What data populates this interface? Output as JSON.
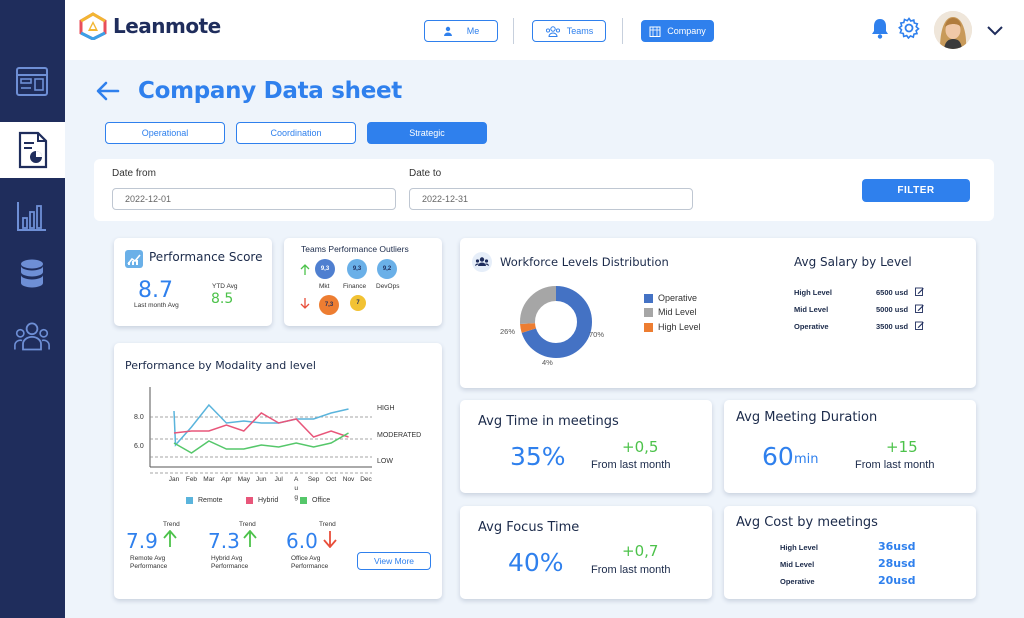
{
  "app": {
    "name": "Leanmote"
  },
  "nav": {
    "me": "Me",
    "teams": "Teams",
    "company": "Company"
  },
  "sidebar": {
    "items": [
      "dashboard-icon",
      "report-icon",
      "bar-chart-icon",
      "database-icon",
      "people-icon"
    ]
  },
  "page": {
    "title": "Company Data sheet"
  },
  "tabs": [
    "Operational",
    "Coordination",
    "Strategic"
  ],
  "filters": {
    "date_from_label": "Date from",
    "date_from_value": "2022-12-01",
    "date_to_label": "Date to",
    "date_to_value": "2022-12-31",
    "filter_label": "FILTER"
  },
  "performance_score": {
    "title": "Performance Score",
    "last_month_value": "8.7",
    "last_month_label": "Last month Avg",
    "ytd_label": "YTD Avg",
    "ytd_value": "8.5"
  },
  "outliers": {
    "title": "Teams Performance Outliers",
    "up": [
      {
        "score": "9,3",
        "team": "Mkt"
      },
      {
        "score": "9,3",
        "team": "Finance"
      },
      {
        "score": "9,2",
        "team": "DevOps"
      }
    ],
    "down": [
      {
        "score": "7,3"
      },
      {
        "score": "7"
      }
    ]
  },
  "workforce": {
    "title": "Workforce Levels Distribution",
    "legend": [
      "Operative",
      "Mid Level",
      "High Level"
    ],
    "colors": [
      "#4472c4",
      "#a6a6a6",
      "#ed7d31"
    ],
    "labels": {
      "operative": "70%",
      "mid": "26%",
      "high": "4%"
    }
  },
  "salary": {
    "title": "Avg Salary by Level",
    "rows": [
      {
        "level": "High Level",
        "value": "6500 usd"
      },
      {
        "level": "Mid Level",
        "value": "5000 usd"
      },
      {
        "level": "Operative",
        "value": "3500 usd"
      }
    ]
  },
  "modality": {
    "title": "Performance by Modality and level",
    "band_labels": [
      "HIGH",
      "MODERATED",
      "LOW"
    ],
    "y_ticks": [
      "8.0",
      "6.0"
    ],
    "months": [
      "Jan",
      "Feb",
      "Mar",
      "Apr",
      "May",
      "Jun",
      "Jul",
      "Aug",
      "Sep",
      "Oct",
      "Nov",
      "Dec"
    ],
    "legend": [
      "Remote",
      "Hybrid",
      "Office"
    ],
    "colors": {
      "remote": "#5ab4dc",
      "hybrid": "#e8567a",
      "office": "#55c76a"
    },
    "stats": [
      {
        "trend_label": "Trend",
        "value": "7.9",
        "label1": "Remote Avg",
        "label2": "Performance",
        "direction": "up"
      },
      {
        "trend_label": "Trend",
        "value": "7.3",
        "label1": "Hybrid Avg",
        "label2": "Performance",
        "direction": "up"
      },
      {
        "trend_label": "Trend",
        "value": "6.0",
        "label1": "Office Avg",
        "label2": "Performance",
        "direction": "down"
      }
    ],
    "view_more": "View More"
  },
  "meetings_time": {
    "title": "Avg Time in meetings",
    "value": "35%",
    "delta": "+0,5",
    "delta_label": "From last month"
  },
  "meeting_duration": {
    "title": "Avg Meeting Duration",
    "value": "60",
    "unit": "min",
    "delta": "+15",
    "delta_label": "From last month"
  },
  "focus_time": {
    "title": "Avg Focus Time",
    "value": "40%",
    "delta": "+0,7",
    "delta_label": "From last month"
  },
  "meeting_cost": {
    "title": "Avg Cost by meetings",
    "rows": [
      {
        "level": "High Level",
        "value": "36usd"
      },
      {
        "level": "Mid Level",
        "value": "28usd"
      },
      {
        "level": "Operative",
        "value": "20usd"
      }
    ]
  },
  "chart_data": {
    "type": "line",
    "title": "Performance by Modality and level",
    "categories": [
      "Jan",
      "Feb",
      "Mar",
      "Apr",
      "May",
      "Jun",
      "Jul",
      "Aug",
      "Sep",
      "Oct",
      "Nov",
      "Dec"
    ],
    "ylim": [
      4.8,
      9.5
    ],
    "grid": true,
    "legend": "bottom",
    "series": [
      {
        "name": "Remote",
        "x": [
          "Jan",
          "Jan",
          "Feb",
          "Mar",
          "Apr",
          "May",
          "Jun",
          "Jul",
          "Aug",
          "Sep",
          "Oct",
          "Nov"
        ],
        "values": [
          8.3,
          6.6,
          7.5,
          8.6,
          7.7,
          7.8,
          7.7,
          7.7,
          7.9,
          7.9,
          8.2,
          8.4
        ]
      },
      {
        "name": "Hybrid",
        "x": [
          "Jan",
          "Feb",
          "Mar",
          "Apr",
          "May",
          "Jun",
          "Jul",
          "Aug",
          "Sep",
          "Oct",
          "Nov"
        ],
        "values": [
          7.2,
          7.3,
          7.3,
          7.6,
          7.3,
          8.2,
          7.7,
          7.9,
          7.0,
          7.3,
          7.0
        ]
      },
      {
        "name": "Office",
        "x": [
          "Jan",
          "Feb",
          "Mar",
          "Apr",
          "May",
          "Jun",
          "Jul",
          "Aug",
          "Sep",
          "Oct",
          "Nov"
        ],
        "values": [
          6.7,
          6.2,
          6.8,
          6.4,
          6.4,
          6.6,
          6.5,
          6.7,
          6.5,
          6.7,
          7.2
        ]
      }
    ]
  }
}
